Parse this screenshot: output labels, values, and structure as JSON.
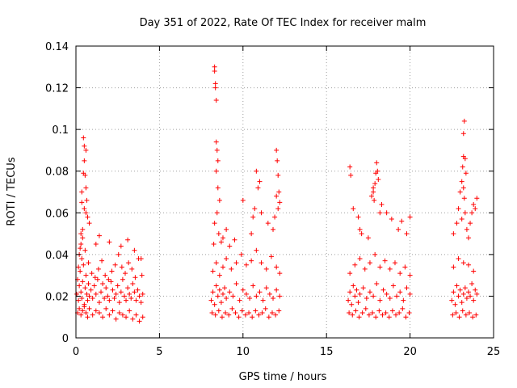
{
  "chart_data": {
    "type": "scatter",
    "title": "Day 351 of 2022, Rate Of TEC Index for receiver malm",
    "xlabel": "GPS time / hours",
    "ylabel": "ROTI / TECUs",
    "xlim": [
      0,
      25
    ],
    "ylim": [
      0,
      0.14
    ],
    "x_ticks": [
      0,
      5,
      10,
      15,
      20,
      25
    ],
    "x_tick_labels": [
      "0",
      "5",
      "10",
      "15",
      "20",
      "25"
    ],
    "y_ticks": [
      0,
      0.02,
      0.04,
      0.06,
      0.08,
      0.1,
      0.12,
      0.14
    ],
    "y_tick_labels": [
      "0",
      "0.02",
      "0.04",
      "0.06",
      "0.08",
      "0.1",
      "0.12",
      "0.14"
    ],
    "grid": true,
    "marker": "+",
    "color": "#ff0000",
    "series": [
      {
        "x": [
          0.05,
          0.1,
          0.15,
          0.2,
          0.25,
          0.3,
          0.35,
          0.4,
          0.45,
          0.5,
          0.55,
          0.6,
          0.65,
          0.7,
          0.75,
          0.8,
          0.9,
          1.0,
          1.1,
          1.2,
          1.3,
          1.4,
          1.5,
          1.6,
          1.7,
          1.8,
          1.9,
          2.0,
          2.1,
          2.2,
          2.3,
          2.4,
          2.5,
          2.6,
          2.7,
          2.8,
          2.9,
          3.0,
          3.1,
          3.2,
          3.3,
          3.4,
          3.5,
          3.6,
          3.7,
          3.8,
          3.9,
          4.0,
          0.1,
          0.2,
          0.3,
          0.4,
          0.5,
          0.6,
          0.7,
          0.8,
          1.0,
          1.2,
          1.4,
          1.6,
          1.8,
          2.0,
          2.2,
          2.4,
          2.6,
          2.8,
          3.0,
          3.2,
          3.4,
          3.6,
          3.8,
          4.0,
          0.15,
          0.35,
          0.55,
          0.75,
          0.95,
          1.15,
          1.35,
          1.55,
          1.75,
          1.95,
          2.15,
          2.35,
          2.55,
          2.75,
          2.95,
          3.15,
          3.35,
          3.55,
          3.75,
          3.95,
          0.3,
          0.4,
          0.5,
          0.55,
          0.6,
          0.45,
          0.5,
          0.35,
          0.65,
          0.7,
          0.4,
          0.6,
          0.2,
          0.3,
          0.45,
          0.8,
          0.5,
          0.35,
          0.25,
          0.6,
          1.2,
          1.4,
          2.0,
          2.7,
          3.1,
          3.5,
          3.9,
          8.1,
          8.2,
          8.3,
          8.4,
          8.5,
          8.6,
          8.7,
          8.8,
          8.9,
          9.0,
          9.2,
          9.4,
          9.6,
          9.8,
          10.0,
          10.2,
          10.4,
          10.6,
          10.8,
          11.0,
          11.2,
          11.4,
          11.6,
          11.8,
          12.0,
          12.2,
          8.15,
          8.35,
          8.55,
          8.75,
          8.95,
          9.15,
          9.35,
          9.55,
          9.75,
          9.95,
          10.15,
          10.35,
          10.55,
          10.75,
          10.95,
          11.15,
          11.35,
          11.55,
          11.75,
          11.95,
          12.15,
          8.2,
          8.4,
          8.6,
          8.8,
          9.0,
          9.3,
          9.6,
          9.9,
          10.2,
          10.5,
          10.8,
          11.1,
          11.4,
          11.7,
          12.0,
          12.2,
          8.3,
          8.35,
          8.4,
          8.3,
          8.35,
          8.25,
          8.4,
          8.45,
          8.5,
          8.4,
          8.6,
          8.5,
          8.45,
          8.3,
          8.55,
          8.7,
          9.0,
          9.5,
          10.0,
          10.5,
          10.6,
          10.7,
          10.8,
          11.0,
          11.5,
          12.0,
          12.05,
          12.1,
          12.15,
          12.2,
          12.1,
          12.0,
          11.9,
          11.8,
          10.9,
          11.1,
          8.8,
          9.2,
          16.3,
          16.4,
          16.5,
          16.6,
          16.7,
          16.8,
          16.9,
          17.0,
          17.2,
          17.4,
          17.6,
          17.8,
          18.0,
          18.2,
          18.4,
          18.6,
          18.8,
          19.0,
          19.2,
          19.4,
          19.6,
          19.8,
          20.0,
          16.35,
          16.55,
          16.75,
          16.95,
          17.15,
          17.35,
          17.55,
          17.75,
          17.95,
          18.15,
          18.35,
          18.55,
          18.75,
          18.95,
          19.15,
          19.35,
          19.55,
          19.75,
          19.95,
          16.4,
          16.7,
          17.0,
          17.3,
          17.6,
          17.9,
          18.2,
          18.5,
          18.8,
          19.1,
          19.4,
          19.7,
          20.0,
          16.4,
          16.45,
          16.6,
          16.9,
          17.0,
          17.1,
          17.5,
          17.7,
          17.8,
          17.9,
          17.95,
          18.0,
          18.1,
          18.3,
          18.6,
          18.9,
          19.3,
          19.5,
          19.8,
          20.0,
          17.85,
          17.8,
          18.05,
          18.2,
          22.5,
          22.6,
          22.7,
          22.8,
          22.9,
          23.0,
          23.1,
          23.2,
          23.3,
          23.4,
          23.5,
          23.6,
          23.7,
          23.8,
          23.9,
          24.0,
          22.55,
          22.75,
          22.95,
          23.15,
          23.35,
          23.55,
          23.75,
          23.95,
          22.6,
          22.9,
          23.2,
          23.5,
          23.8,
          22.6,
          22.8,
          22.9,
          23.0,
          23.1,
          23.15,
          23.2,
          23.2,
          23.25,
          23.3,
          23.35,
          23.2,
          23.25,
          23.3,
          23.1,
          23.4,
          23.5,
          23.6,
          23.7,
          23.8,
          23.9,
          24.0
        ],
        "y": [
          0.021,
          0.028,
          0.018,
          0.025,
          0.032,
          0.022,
          0.019,
          0.027,
          0.035,
          0.016,
          0.024,
          0.03,
          0.021,
          0.018,
          0.026,
          0.02,
          0.023,
          0.019,
          0.025,
          0.021,
          0.028,
          0.017,
          0.022,
          0.026,
          0.019,
          0.024,
          0.02,
          0.018,
          0.027,
          0.023,
          0.019,
          0.021,
          0.025,
          0.017,
          0.022,
          0.028,
          0.02,
          0.018,
          0.024,
          0.021,
          0.019,
          0.026,
          0.022,
          0.018,
          0.023,
          0.02,
          0.017,
          0.021,
          0.012,
          0.014,
          0.011,
          0.013,
          0.015,
          0.012,
          0.01,
          0.014,
          0.011,
          0.013,
          0.012,
          0.01,
          0.014,
          0.011,
          0.013,
          0.009,
          0.012,
          0.011,
          0.01,
          0.013,
          0.009,
          0.011,
          0.008,
          0.01,
          0.034,
          0.038,
          0.042,
          0.036,
          0.031,
          0.029,
          0.033,
          0.037,
          0.03,
          0.028,
          0.032,
          0.035,
          0.04,
          0.034,
          0.031,
          0.036,
          0.033,
          0.029,
          0.038,
          0.03,
          0.045,
          0.052,
          0.062,
          0.078,
          0.09,
          0.096,
          0.085,
          0.07,
          0.066,
          0.058,
          0.048,
          0.06,
          0.04,
          0.05,
          0.079,
          0.055,
          0.092,
          0.065,
          0.043,
          0.072,
          0.045,
          0.049,
          0.046,
          0.044,
          0.047,
          0.042,
          0.038,
          0.018,
          0.022,
          0.016,
          0.025,
          0.02,
          0.023,
          0.017,
          0.021,
          0.024,
          0.019,
          0.022,
          0.02,
          0.026,
          0.018,
          0.023,
          0.021,
          0.019,
          0.025,
          0.02,
          0.022,
          0.018,
          0.024,
          0.021,
          0.019,
          0.023,
          0.02,
          0.012,
          0.011,
          0.013,
          0.01,
          0.012,
          0.011,
          0.014,
          0.012,
          0.01,
          0.013,
          0.011,
          0.012,
          0.01,
          0.013,
          0.011,
          0.012,
          0.014,
          0.01,
          0.012,
          0.011,
          0.013,
          0.032,
          0.036,
          0.03,
          0.034,
          0.038,
          0.033,
          0.036,
          0.04,
          0.035,
          0.037,
          0.042,
          0.036,
          0.033,
          0.039,
          0.034,
          0.031,
          0.128,
          0.122,
          0.114,
          0.13,
          0.12,
          0.045,
          0.094,
          0.09,
          0.085,
          0.08,
          0.066,
          0.072,
          0.06,
          0.055,
          0.05,
          0.046,
          0.052,
          0.047,
          0.066,
          0.05,
          0.058,
          0.062,
          0.08,
          0.075,
          0.055,
          0.09,
          0.085,
          0.078,
          0.07,
          0.065,
          0.062,
          0.068,
          0.058,
          0.052,
          0.072,
          0.06,
          0.048,
          0.044,
          0.018,
          0.022,
          0.016,
          0.025,
          0.02,
          0.023,
          0.017,
          0.021,
          0.024,
          0.019,
          0.022,
          0.02,
          0.026,
          0.018,
          0.023,
          0.021,
          0.019,
          0.025,
          0.02,
          0.022,
          0.018,
          0.024,
          0.021,
          0.012,
          0.011,
          0.013,
          0.01,
          0.012,
          0.014,
          0.011,
          0.012,
          0.01,
          0.013,
          0.011,
          0.012,
          0.01,
          0.013,
          0.011,
          0.012,
          0.014,
          0.01,
          0.012,
          0.031,
          0.035,
          0.038,
          0.033,
          0.036,
          0.04,
          0.034,
          0.037,
          0.033,
          0.036,
          0.031,
          0.034,
          0.03,
          0.082,
          0.078,
          0.062,
          0.058,
          0.052,
          0.05,
          0.048,
          0.068,
          0.07,
          0.074,
          0.079,
          0.084,
          0.076,
          0.064,
          0.06,
          0.057,
          0.052,
          0.056,
          0.05,
          0.058,
          0.066,
          0.072,
          0.08,
          0.06,
          0.018,
          0.022,
          0.016,
          0.025,
          0.02,
          0.023,
          0.017,
          0.021,
          0.024,
          0.019,
          0.022,
          0.02,
          0.026,
          0.018,
          0.023,
          0.021,
          0.011,
          0.012,
          0.01,
          0.013,
          0.011,
          0.012,
          0.01,
          0.011,
          0.034,
          0.038,
          0.036,
          0.035,
          0.032,
          0.05,
          0.055,
          0.062,
          0.07,
          0.075,
          0.082,
          0.087,
          0.098,
          0.104,
          0.086,
          0.079,
          0.072,
          0.067,
          0.06,
          0.057,
          0.052,
          0.048,
          0.055,
          0.06,
          0.064,
          0.062,
          0.067
        ]
      }
    ]
  }
}
